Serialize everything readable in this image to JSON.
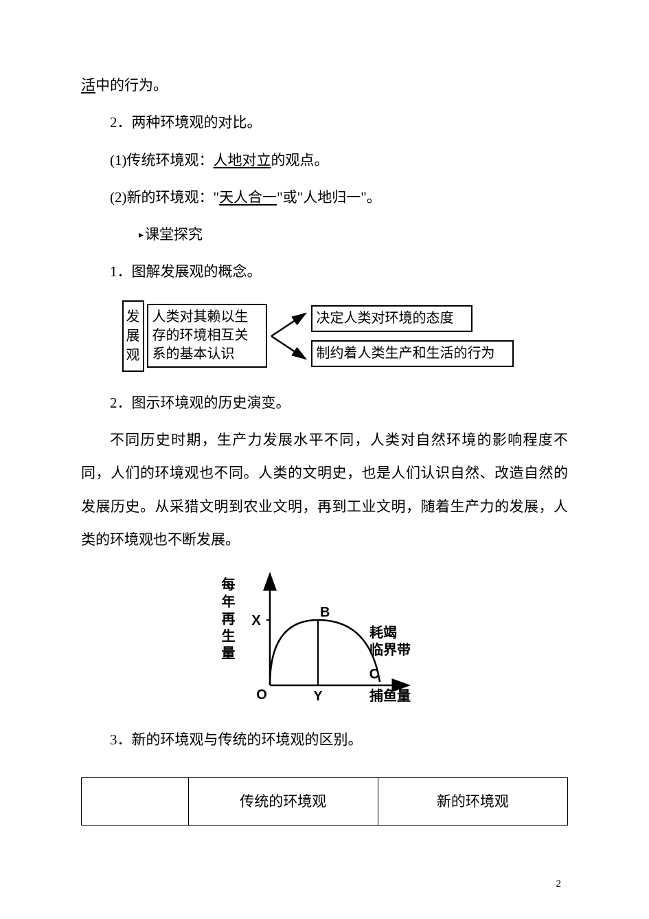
{
  "line1": {
    "pre": "活",
    "post": "中的行为。"
  },
  "line2": "2．两种环境观的对比。",
  "line3": {
    "pre": "(1)传统环境观：",
    "underline": "人地对立",
    "post": "的观点。"
  },
  "line4": {
    "pre": "(2)新的环境观：\"",
    "underline": "天人合一",
    "post": "\"或\"人地归一\"。"
  },
  "heading": "课堂探究",
  "heading_marker": "▸",
  "line5": "1．图解发展观的概念。",
  "diagram1": {
    "left": "发展观",
    "center": "人类对其赖以生存的环境相互关系的基本认识",
    "right1": "决定人类对环境的态度",
    "right2": "制约着人类生产和生活的行为",
    "stroke_color": "#000000",
    "stroke_width": 2
  },
  "line6": "2．图示环境观的历史演变。",
  "paragraph": "不同历史时期，生产力发展水平不同，人类对自然环境的影响程度不同，人们的环境观也不同。人类的文明史，也是人们认识自然、改造自然的发展历史。从采猎文明到农业文明，再到工业文明，随着生产力的发展，人类的环境观也不断发展。",
  "diagram2": {
    "y_label": "每年再生量",
    "x_label": "捕鱼量",
    "origin": "O",
    "point_b": "B",
    "point_c": "C",
    "point_x": "X",
    "point_y": "Y",
    "curve_label": "耗竭临界带",
    "stroke_color": "#000000",
    "stroke_width": 2.5,
    "font_color": "#000000"
  },
  "line7": "3．新的环境观与传统的环境观的区别。",
  "table": {
    "col1_header": "",
    "col2_header": "传统的环境观",
    "col3_header": "新的环境观"
  },
  "page_number": "2"
}
